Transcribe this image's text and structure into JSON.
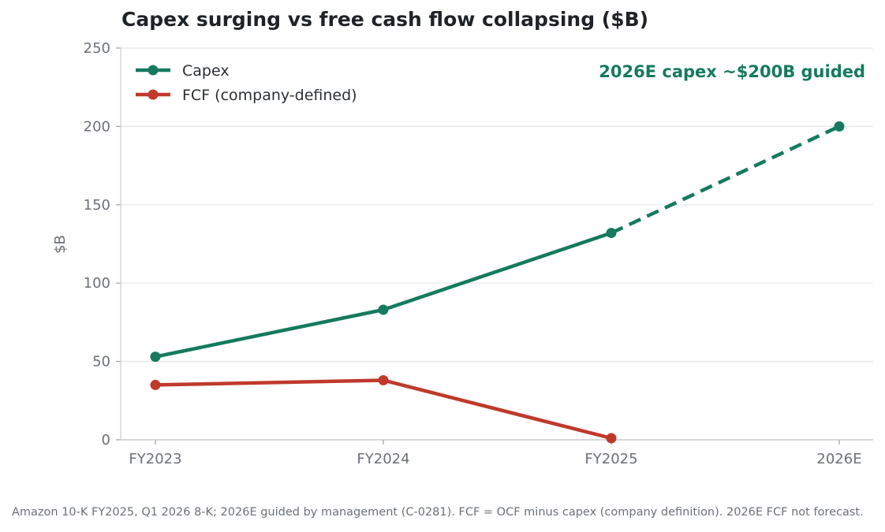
{
  "chart_data": {
    "type": "line",
    "title": "Capex surging vs free cash flow collapsing ($B)",
    "ylabel": "$B",
    "xlabel": "",
    "categories": [
      "FY2023",
      "FY2024",
      "FY2025",
      "2026E"
    ],
    "yticks": [
      0,
      50,
      100,
      150,
      200,
      250
    ],
    "ylim": [
      0,
      250
    ],
    "grid": "horizontal",
    "legend_position": "top-left",
    "series": [
      {
        "name": "Capex",
        "color": "#157a5e",
        "values": [
          53,
          83,
          132,
          200
        ],
        "dashed_from_index": 2
      },
      {
        "name": "FCF (company-defined)",
        "color": "#c0392b",
        "values": [
          35,
          38,
          1,
          null
        ]
      }
    ],
    "annotation": {
      "text": "2026E capex ~$200B guided",
      "color": "#157a5e"
    },
    "footnote": "Amazon 10-K FY2025, Q1 2026 8-K; 2026E guided by management (C-0281). FCF = OCF minus capex (company definition). 2026E FCF not forecast."
  }
}
